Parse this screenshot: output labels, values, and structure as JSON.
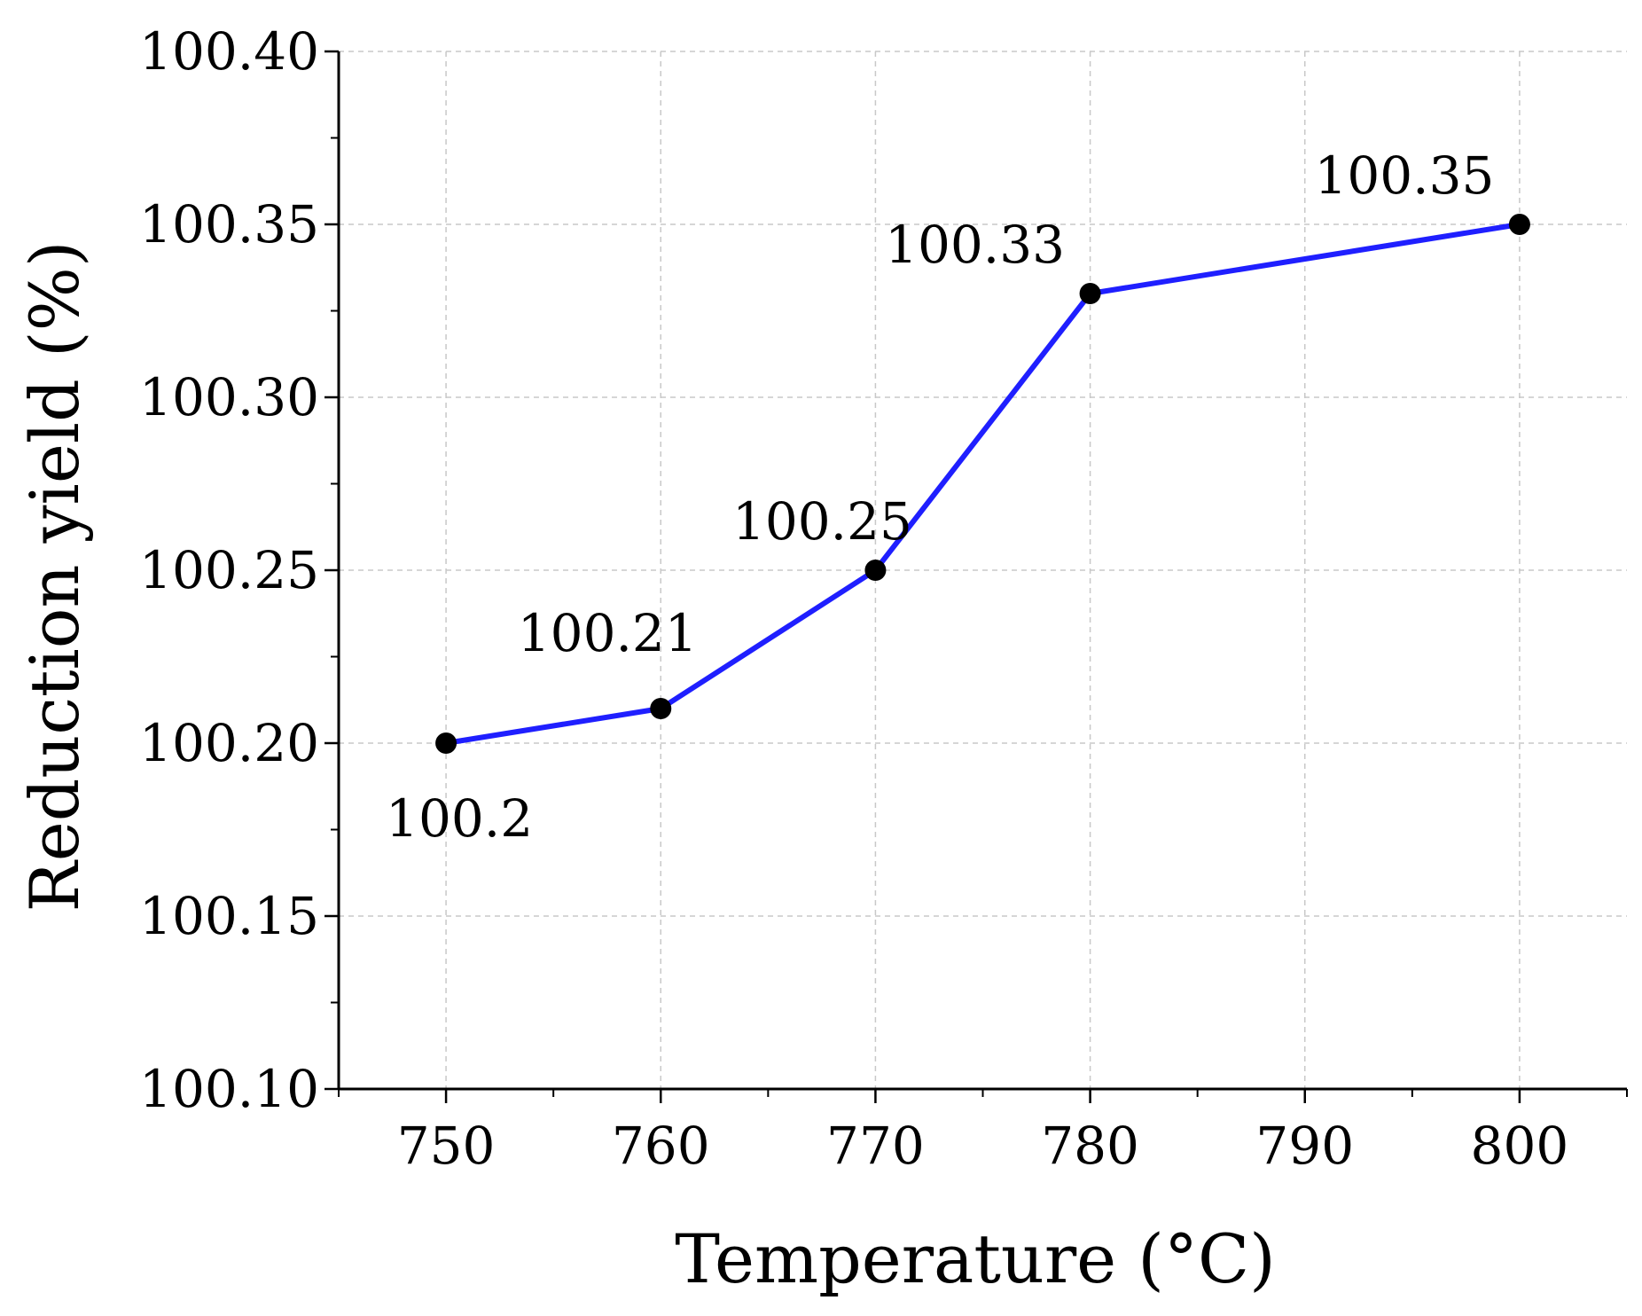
{
  "chart_data": {
    "type": "line",
    "title": "",
    "xlabel": "Temperature (°C)",
    "ylabel": "Reduction yield (%)",
    "x": [
      750,
      760,
      770,
      780,
      800
    ],
    "series": [
      {
        "name": "Reduction yield",
        "values": [
          100.2,
          100.21,
          100.25,
          100.33,
          100.35
        ],
        "color": "#1f1fff"
      }
    ],
    "data_labels": [
      "100.2",
      "100.21",
      "100.25",
      "100.33",
      "100.35"
    ],
    "xlim": [
      745,
      805
    ],
    "ylim": [
      100.1,
      100.4
    ],
    "xticks": [
      "750",
      "760",
      "770",
      "780",
      "790",
      "800"
    ],
    "yticks": [
      "100.10",
      "100.15",
      "100.20",
      "100.25",
      "100.30",
      "100.35",
      "100.40"
    ],
    "grid": true,
    "marker_color": "#000000"
  }
}
